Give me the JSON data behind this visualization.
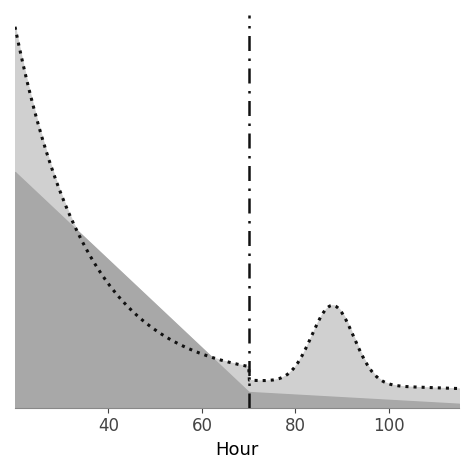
{
  "title": "",
  "xlabel": "Hour",
  "ylabel": "",
  "xlim": [
    20,
    115
  ],
  "ylim_main": [
    0,
    1.0
  ],
  "vline_x": 70,
  "fill_color_light": "#d0d0d0",
  "fill_color_base": "#a8a8a8",
  "base_level": 0.04,
  "background_color": "#ffffff",
  "xticks": [
    40,
    60,
    80,
    100
  ],
  "dotted_line_color": "#111111",
  "dotted_linewidth": 2.2,
  "dotted_markersize": 4.5,
  "vline_color": "#111111",
  "vline_linewidth": 1.8
}
